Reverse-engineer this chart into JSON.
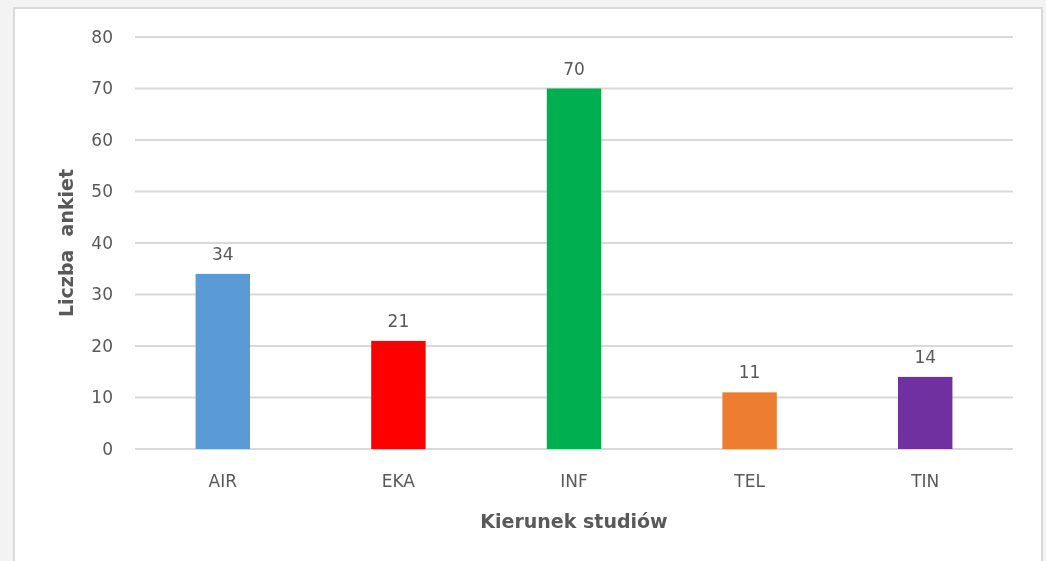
{
  "chart_data": {
    "type": "bar",
    "xlabel": "Kierunek studiów",
    "ylabel": "Liczba  ankiet",
    "categories": [
      "AIR",
      "EKA",
      "INF",
      "TEL",
      "TIN"
    ],
    "values": [
      34,
      21,
      70,
      11,
      14
    ],
    "colors": [
      "#5b9bd5",
      "#ff0000",
      "#00b050",
      "#ed7d31",
      "#7030a0"
    ],
    "ylim": [
      0,
      80
    ],
    "yticks": [
      0,
      10,
      20,
      30,
      40,
      50,
      60,
      70,
      80
    ],
    "grid": "y",
    "data_labels": true
  }
}
